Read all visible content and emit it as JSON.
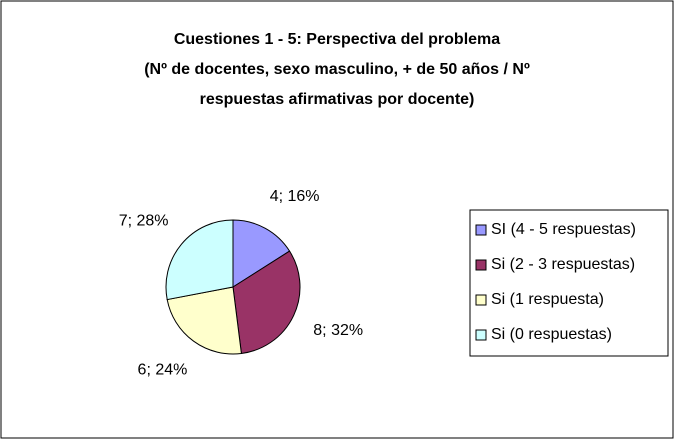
{
  "chart_data": {
    "type": "pie",
    "title": [
      "Cuestiones 1 - 5: Perspectiva del problema",
      "(Nº de docentes, sexo masculino, + de 50 años / Nº",
      "respuestas afirmativas por docente)"
    ],
    "categories": [
      "SI (4 - 5 respuestas)",
      "Si (2 - 3 respuestas)",
      "Si (1 respuesta)",
      "Si (0 respuestas)"
    ],
    "values": [
      4,
      8,
      6,
      7
    ],
    "value_labels": [
      "4; 16%",
      "8; 32%",
      "6; 24%",
      "7; 28%"
    ],
    "colors": [
      "#9999ff",
      "#993366",
      "#ffffcc",
      "#ccffff"
    ],
    "legend": "right"
  }
}
